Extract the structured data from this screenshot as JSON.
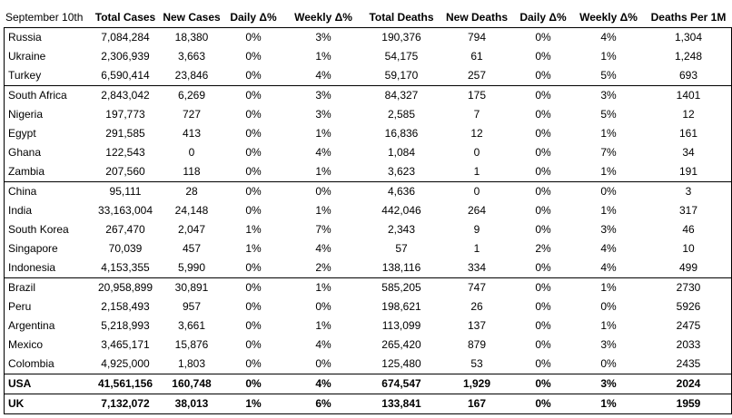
{
  "table": {
    "headers": [
      "September 10th",
      "Total Cases",
      "New Cases",
      "Daily Δ%",
      "Weekly Δ%",
      "Total Deaths",
      "New Deaths",
      "Daily Δ%",
      "Weekly Δ%",
      "Deaths Per 1M"
    ],
    "rows": [
      {
        "group_start": false,
        "bold": false,
        "cells": [
          "Russia",
          "7,084,284",
          "18,380",
          "0%",
          "3%",
          "190,376",
          "794",
          "0%",
          "4%",
          "1,304"
        ]
      },
      {
        "group_start": false,
        "bold": false,
        "cells": [
          "Ukraine",
          "2,306,939",
          "3,663",
          "0%",
          "1%",
          "54,175",
          "61",
          "0%",
          "1%",
          "1,248"
        ]
      },
      {
        "group_start": false,
        "bold": false,
        "cells": [
          "Turkey",
          "6,590,414",
          "23,846",
          "0%",
          "4%",
          "59,170",
          "257",
          "0%",
          "5%",
          "693"
        ]
      },
      {
        "group_start": true,
        "bold": false,
        "cells": [
          "South Africa",
          "2,843,042",
          "6,269",
          "0%",
          "3%",
          "84,327",
          "175",
          "0%",
          "3%",
          "1401"
        ]
      },
      {
        "group_start": false,
        "bold": false,
        "cells": [
          "Nigeria",
          "197,773",
          "727",
          "0%",
          "3%",
          "2,585",
          "7",
          "0%",
          "5%",
          "12"
        ]
      },
      {
        "group_start": false,
        "bold": false,
        "cells": [
          "Egypt",
          "291,585",
          "413",
          "0%",
          "1%",
          "16,836",
          "12",
          "0%",
          "1%",
          "161"
        ]
      },
      {
        "group_start": false,
        "bold": false,
        "cells": [
          "Ghana",
          "122,543",
          "0",
          "0%",
          "4%",
          "1,084",
          "0",
          "0%",
          "7%",
          "34"
        ]
      },
      {
        "group_start": false,
        "bold": false,
        "cells": [
          "Zambia",
          "207,560",
          "118",
          "0%",
          "1%",
          "3,623",
          "1",
          "0%",
          "1%",
          "191"
        ]
      },
      {
        "group_start": true,
        "bold": false,
        "cells": [
          "China",
          "95,111",
          "28",
          "0%",
          "0%",
          "4,636",
          "0",
          "0%",
          "0%",
          "3"
        ]
      },
      {
        "group_start": false,
        "bold": false,
        "cells": [
          "India",
          "33,163,004",
          "24,148",
          "0%",
          "1%",
          "442,046",
          "264",
          "0%",
          "1%",
          "317"
        ]
      },
      {
        "group_start": false,
        "bold": false,
        "cells": [
          "South Korea",
          "267,470",
          "2,047",
          "1%",
          "7%",
          "2,343",
          "9",
          "0%",
          "3%",
          "46"
        ]
      },
      {
        "group_start": false,
        "bold": false,
        "cells": [
          "Singapore",
          "70,039",
          "457",
          "1%",
          "4%",
          "57",
          "1",
          "2%",
          "4%",
          "10"
        ]
      },
      {
        "group_start": false,
        "bold": false,
        "cells": [
          "Indonesia",
          "4,153,355",
          "5,990",
          "0%",
          "2%",
          "138,116",
          "334",
          "0%",
          "4%",
          "499"
        ]
      },
      {
        "group_start": true,
        "bold": false,
        "cells": [
          "Brazil",
          "20,958,899",
          "30,891",
          "0%",
          "1%",
          "585,205",
          "747",
          "0%",
          "1%",
          "2730"
        ]
      },
      {
        "group_start": false,
        "bold": false,
        "cells": [
          "Peru",
          "2,158,493",
          "957",
          "0%",
          "0%",
          "198,621",
          "26",
          "0%",
          "0%",
          "5926"
        ]
      },
      {
        "group_start": false,
        "bold": false,
        "cells": [
          "Argentina",
          "5,218,993",
          "3,661",
          "0%",
          "1%",
          "113,099",
          "137",
          "0%",
          "1%",
          "2475"
        ]
      },
      {
        "group_start": false,
        "bold": false,
        "cells": [
          "Mexico",
          "3,465,171",
          "15,876",
          "0%",
          "4%",
          "265,420",
          "879",
          "0%",
          "3%",
          "2033"
        ]
      },
      {
        "group_start": false,
        "bold": false,
        "cells": [
          "Colombia",
          "4,925,000",
          "1,803",
          "0%",
          "0%",
          "125,480",
          "53",
          "0%",
          "0%",
          "2435"
        ]
      },
      {
        "group_start": true,
        "bold": true,
        "cells": [
          "USA",
          "41,561,156",
          "160,748",
          "0%",
          "4%",
          "674,547",
          "1,929",
          "0%",
          "3%",
          "2024"
        ]
      },
      {
        "group_start": true,
        "bold": true,
        "cells": [
          "UK",
          "7,132,072",
          "38,013",
          "1%",
          "6%",
          "133,841",
          "167",
          "0%",
          "1%",
          "1959"
        ]
      }
    ]
  }
}
